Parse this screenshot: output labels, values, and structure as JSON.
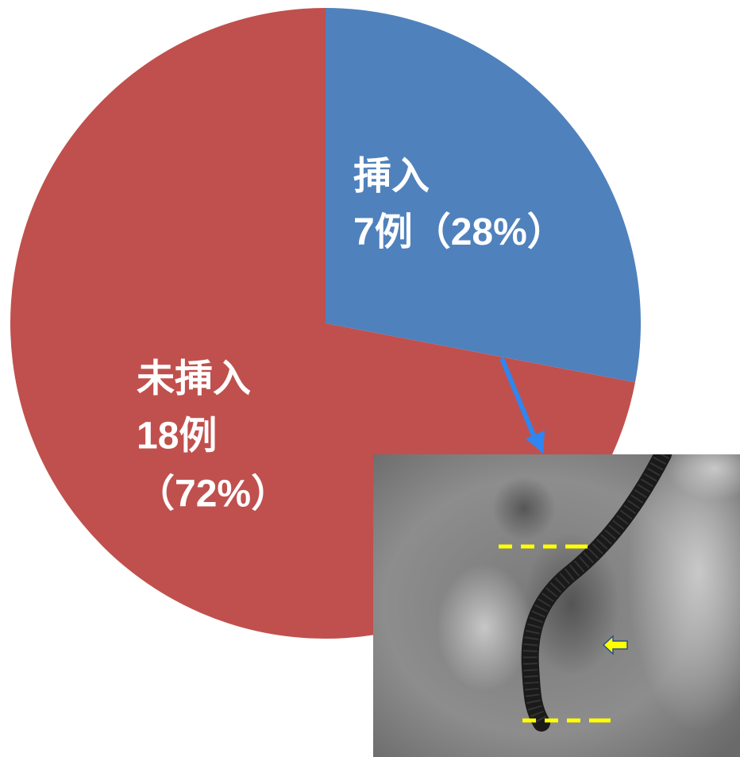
{
  "chart_data": {
    "type": "pie",
    "categories": [
      "挿入",
      "未挿入"
    ],
    "values": [
      28,
      72
    ],
    "value_labels": [
      "（28%）",
      "（72%）"
    ],
    "case_labels": [
      "7例",
      "18例"
    ],
    "colors": [
      "#4f81bd",
      "#c0504d"
    ],
    "start_angle": 90,
    "direction": "clockwise"
  }
}
